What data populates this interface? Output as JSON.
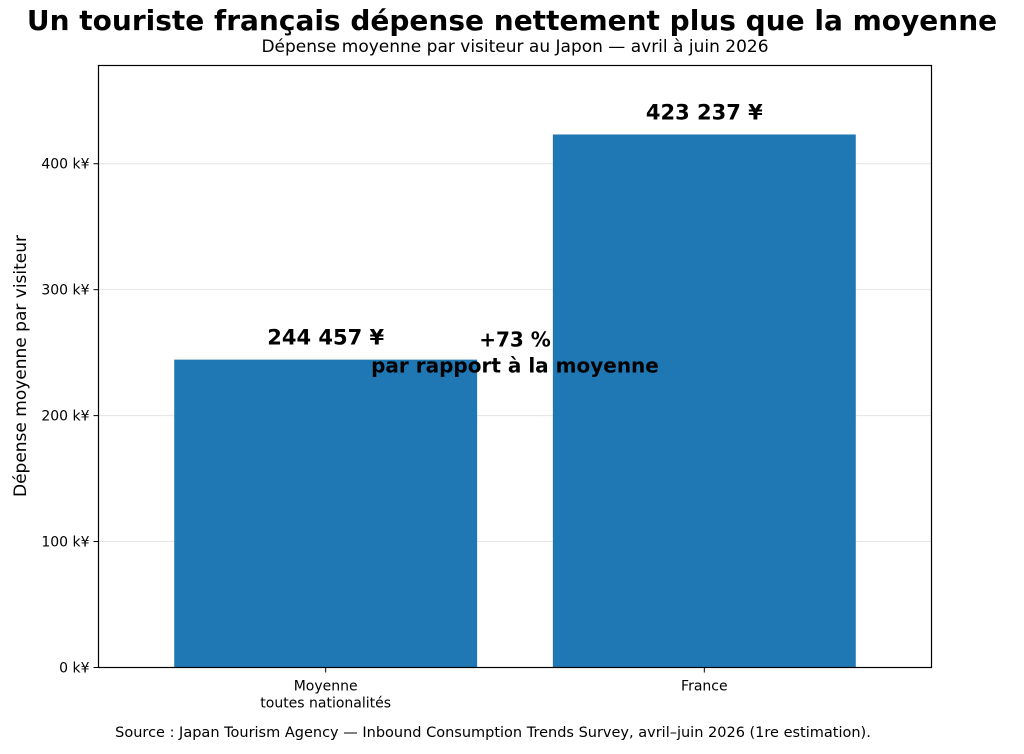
{
  "chart_data": {
    "type": "bar",
    "title": "Un touriste français dépense nettement plus que la moyenne",
    "subtitle": "Dépense moyenne par visiteur au Japon — avril à juin 2026",
    "ylabel": "Dépense moyenne par visiteur",
    "xlabel": "",
    "categories": [
      [
        "Moyenne",
        "toutes nationalités"
      ],
      [
        "France"
      ]
    ],
    "values": [
      244457,
      423237
    ],
    "value_labels": [
      "244 457 ¥",
      "423 237 ¥"
    ],
    "ylim": [
      0,
      478000
    ],
    "yticks": [
      0,
      100000,
      200000,
      300000,
      400000
    ],
    "ytick_labels": [
      "0 k¥",
      "100 k¥",
      "200 k¥",
      "300 k¥",
      "400 k¥"
    ],
    "grid": "horizontal",
    "bar_color": "#1f77b4",
    "annotation": {
      "lines": [
        "+73 %",
        "par rapport à la moyenne"
      ],
      "y": 244457
    },
    "source": "Source : Japan Tourism Agency — Inbound Consumption Trends Survey, avril–juin 2026 (1re estimation)."
  }
}
